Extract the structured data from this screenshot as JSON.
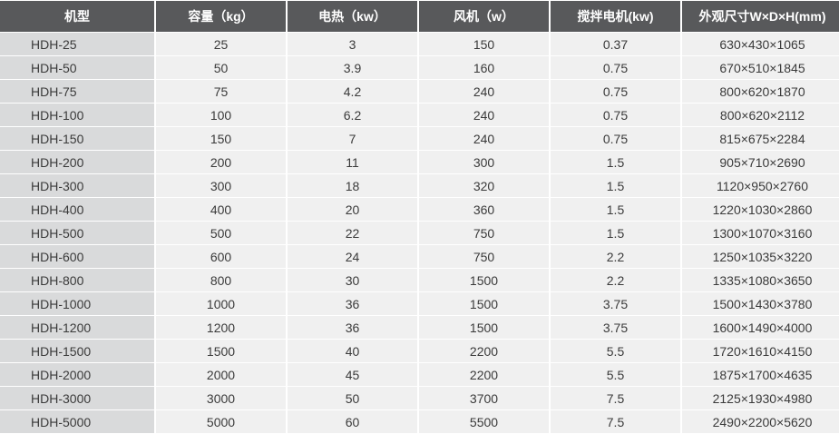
{
  "table": {
    "header": [
      "机型",
      "容量（kg）",
      "电热（kw）",
      "风机（w）",
      "搅拌电机(kw)",
      "外观尺寸W×D×H(mm)"
    ],
    "rows": [
      [
        "HDH-25",
        "25",
        "3",
        "150",
        "0.37",
        "630×430×1065"
      ],
      [
        "HDH-50",
        "50",
        "3.9",
        "160",
        "0.75",
        "670×510×1845"
      ],
      [
        "HDH-75",
        "75",
        "4.2",
        "240",
        "0.75",
        "800×620×1870"
      ],
      [
        "HDH-100",
        "100",
        "6.2",
        "240",
        "0.75",
        "800×620×2112"
      ],
      [
        "HDH-150",
        "150",
        "7",
        "240",
        "0.75",
        "815×675×2284"
      ],
      [
        "HDH-200",
        "200",
        "11",
        "300",
        "1.5",
        "905×710×2690"
      ],
      [
        "HDH-300",
        "300",
        "18",
        "320",
        "1.5",
        "1120×950×2760"
      ],
      [
        "HDH-400",
        "400",
        "20",
        "360",
        "1.5",
        "1220×1030×2860"
      ],
      [
        "HDH-500",
        "500",
        "22",
        "750",
        "1.5",
        "1300×1070×3160"
      ],
      [
        "HDH-600",
        "600",
        "24",
        "750",
        "2.2",
        "1250×1035×3220"
      ],
      [
        "HDH-800",
        "800",
        "30",
        "1500",
        "2.2",
        "1335×1080×3650"
      ],
      [
        "HDH-1000",
        "1000",
        "36",
        "1500",
        "3.75",
        "1500×1430×3780"
      ],
      [
        "HDH-1200",
        "1200",
        "36",
        "1500",
        "3.75",
        "1600×1490×4000"
      ],
      [
        "HDH-1500",
        "1500",
        "40",
        "2200",
        "5.5",
        "1720×1610×4150"
      ],
      [
        "HDH-2000",
        "2000",
        "45",
        "2200",
        "5.5",
        "1875×1700×4635"
      ],
      [
        "HDH-3000",
        "3000",
        "50",
        "3700",
        "7.5",
        "2125×1930×4980"
      ],
      [
        "HDH-5000",
        "5000",
        "60",
        "5500",
        "7.5",
        "2490×2200×5620"
      ]
    ]
  }
}
